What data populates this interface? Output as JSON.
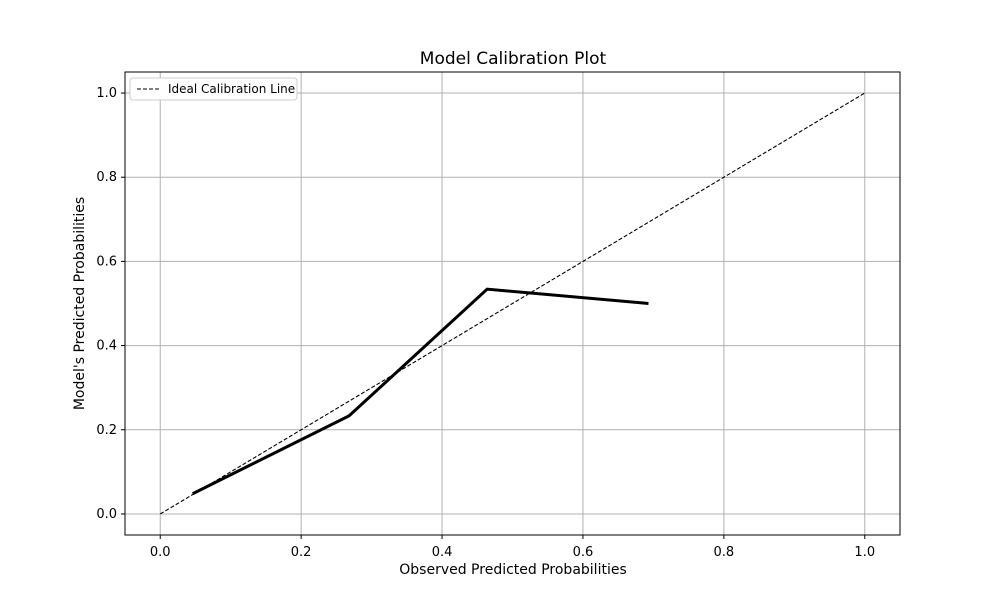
{
  "chart_data": {
    "type": "line",
    "title": "Model Calibration Plot",
    "xlabel": "Observed Predicted Probabilities",
    "ylabel": "Model's Predicted Probabilities",
    "xlim": [
      -0.05,
      1.05
    ],
    "ylim": [
      -0.05,
      1.05
    ],
    "xticks": [
      "0.0",
      "0.2",
      "0.4",
      "0.6",
      "0.8",
      "1.0"
    ],
    "yticks": [
      "0.0",
      "0.2",
      "0.4",
      "0.6",
      "0.8",
      "1.0"
    ],
    "grid": true,
    "legend_position": "top-left",
    "series": [
      {
        "name": "Ideal Calibration Line",
        "style": "dashed",
        "color": "#000000",
        "x": [
          0.0,
          1.0
        ],
        "y": [
          0.0,
          1.0
        ]
      },
      {
        "name": "",
        "style": "solid",
        "color": "#000000",
        "x": [
          0.046,
          0.268,
          0.464,
          0.693
        ],
        "y": [
          0.048,
          0.233,
          0.534,
          0.5
        ]
      }
    ]
  }
}
